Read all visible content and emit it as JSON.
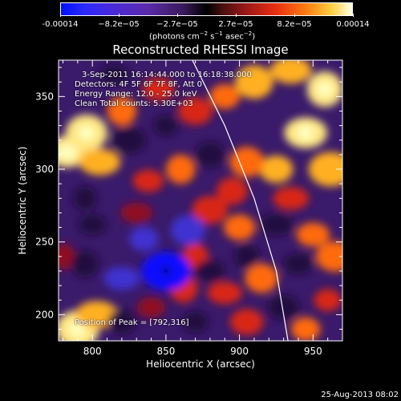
{
  "colorbar": {
    "ticks": [
      "-0.00014",
      "−8.2e−05",
      "−2.7e−05",
      "2.7e−05",
      "8.2e−05",
      "0.00014"
    ],
    "units_main": "(photons cm",
    "units_sup1": "−2",
    "units_mid": " s",
    "units_sup2": "−1",
    "units_mid2": " asec",
    "units_sup3": "−2",
    "units_end": ")"
  },
  "title": "Reconstructed RHESSI Image",
  "annotations": {
    "time_range": "3-Sep-2011 16:14:44.000 to 16:18:38.000",
    "detectors": "Detectors: 4F 5F 6F 7F 8F, Att 0",
    "energy": "Energy Range: 12.0 - 25.0 keV",
    "algorithm": "Clean    Total counts: 5.30E+03",
    "peak": "Position of Peak = [792,316]"
  },
  "footer": "25-Aug-2013 08:02",
  "chart_data": {
    "type": "heatmap",
    "title": "Reconstructed RHESSI Image",
    "xlabel": "Heliocentric X (arcsec)",
    "ylabel": "Heliocentric Y (arcsec)",
    "xlim": [
      777,
      970
    ],
    "ylim": [
      182,
      375
    ],
    "xticks": [
      800,
      850,
      900,
      950
    ],
    "yticks": [
      200,
      250,
      300,
      350
    ],
    "colorbar_range": [
      -0.00014,
      0.00014
    ],
    "colorbar_ticks": [
      -0.00014,
      -8.2e-05,
      -2.7e-05,
      2.7e-05,
      8.2e-05,
      0.00014
    ],
    "peak_position": [
      792,
      316
    ],
    "limb_curve": [
      [
        868,
        375
      ],
      [
        890,
        330
      ],
      [
        910,
        280
      ],
      [
        925,
        230
      ],
      [
        933,
        182
      ]
    ],
    "blobs": [
      {
        "x": 783,
        "y": 312,
        "v": 1.0
      },
      {
        "x": 796,
        "y": 325,
        "v": 0.9
      },
      {
        "x": 805,
        "y": 305,
        "v": 0.7
      },
      {
        "x": 820,
        "y": 340,
        "v": 0.55
      },
      {
        "x": 845,
        "y": 355,
        "v": 0.5
      },
      {
        "x": 870,
        "y": 340,
        "v": 0.45
      },
      {
        "x": 890,
        "y": 350,
        "v": 0.6
      },
      {
        "x": 910,
        "y": 360,
        "v": 0.75
      },
      {
        "x": 935,
        "y": 368,
        "v": 0.7
      },
      {
        "x": 958,
        "y": 355,
        "v": 0.85
      },
      {
        "x": 945,
        "y": 325,
        "v": 0.95
      },
      {
        "x": 962,
        "y": 300,
        "v": 0.8
      },
      {
        "x": 925,
        "y": 300,
        "v": 0.75
      },
      {
        "x": 905,
        "y": 305,
        "v": 0.6
      },
      {
        "x": 935,
        "y": 280,
        "v": 0.5
      },
      {
        "x": 860,
        "y": 300,
        "v": 0.55
      },
      {
        "x": 838,
        "y": 292,
        "v": 0.45
      },
      {
        "x": 880,
        "y": 272,
        "v": 0.5
      },
      {
        "x": 900,
        "y": 260,
        "v": 0.65
      },
      {
        "x": 895,
        "y": 285,
        "v": 0.45
      },
      {
        "x": 830,
        "y": 270,
        "v": 0.35
      },
      {
        "x": 870,
        "y": 240,
        "v": 0.4
      },
      {
        "x": 950,
        "y": 255,
        "v": 0.55
      },
      {
        "x": 965,
        "y": 240,
        "v": 0.6
      },
      {
        "x": 960,
        "y": 210,
        "v": 0.45
      },
      {
        "x": 915,
        "y": 225,
        "v": 0.55
      },
      {
        "x": 890,
        "y": 215,
        "v": 0.45
      },
      {
        "x": 862,
        "y": 218,
        "v": 0.5
      },
      {
        "x": 840,
        "y": 205,
        "v": 0.35
      },
      {
        "x": 905,
        "y": 195,
        "v": 0.4
      },
      {
        "x": 945,
        "y": 190,
        "v": 0.55
      },
      {
        "x": 790,
        "y": 190,
        "v": 0.95
      },
      {
        "x": 803,
        "y": 200,
        "v": 0.75
      },
      {
        "x": 780,
        "y": 240,
        "v": 0.35
      },
      {
        "x": 800,
        "y": 262,
        "v": -0.35
      },
      {
        "x": 850,
        "y": 230,
        "v": -1.0
      },
      {
        "x": 835,
        "y": 252,
        "v": -0.55
      },
      {
        "x": 865,
        "y": 258,
        "v": -0.6
      },
      {
        "x": 820,
        "y": 225,
        "v": -0.5
      },
      {
        "x": 795,
        "y": 235,
        "v": -0.45
      },
      {
        "x": 880,
        "y": 230,
        "v": -0.45
      },
      {
        "x": 825,
        "y": 320,
        "v": -0.45
      },
      {
        "x": 850,
        "y": 330,
        "v": -0.35
      },
      {
        "x": 880,
        "y": 310,
        "v": -0.4
      },
      {
        "x": 925,
        "y": 262,
        "v": -0.45
      },
      {
        "x": 905,
        "y": 240,
        "v": -0.35
      },
      {
        "x": 940,
        "y": 235,
        "v": -0.4
      },
      {
        "x": 930,
        "y": 205,
        "v": -0.35
      },
      {
        "x": 870,
        "y": 195,
        "v": -0.4
      },
      {
        "x": 820,
        "y": 195,
        "v": -0.35
      },
      {
        "x": 815,
        "y": 365,
        "v": -0.3
      },
      {
        "x": 795,
        "y": 280,
        "v": -0.3
      }
    ]
  }
}
